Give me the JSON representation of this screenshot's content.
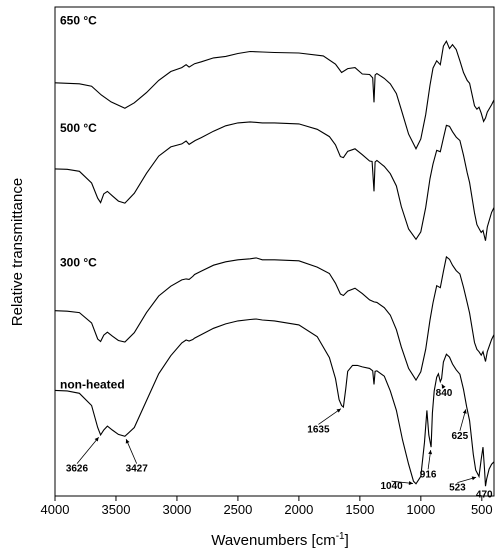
{
  "chart_data": {
    "type": "line",
    "xlabel": "Wavenumbers [cm",
    "xlabel_sup": "-1",
    "xlabel_end": "]",
    "ylabel": "Relative transmittance",
    "xlim": [
      4000,
      400
    ],
    "x_reversed": true,
    "ylim": [
      0,
      100
    ],
    "y_ticks_shown": false,
    "x_ticks": [
      4000,
      3500,
      3000,
      2500,
      2000,
      1500,
      1000,
      500
    ],
    "x_tick_labels": [
      "4000",
      "3500",
      "3000",
      "2500",
      "2000",
      "1500",
      "1000",
      "500"
    ],
    "series": [
      {
        "name": "650 °C",
        "points": [
          [
            4000,
            84.5
          ],
          [
            3900,
            84.4
          ],
          [
            3800,
            84.3
          ],
          [
            3700,
            83.8
          ],
          [
            3620,
            82.0
          ],
          [
            3540,
            80.6
          ],
          [
            3427,
            79.3
          ],
          [
            3350,
            80.4
          ],
          [
            3250,
            82.5
          ],
          [
            3150,
            85.0
          ],
          [
            3050,
            86.8
          ],
          [
            2960,
            87.6
          ],
          [
            2925,
            88.2
          ],
          [
            2900,
            87.7
          ],
          [
            2855,
            88.4
          ],
          [
            2800,
            88.8
          ],
          [
            2700,
            89.6
          ],
          [
            2600,
            89.9
          ],
          [
            2500,
            90.5
          ],
          [
            2400,
            90.9
          ],
          [
            2300,
            90.8
          ],
          [
            2200,
            90.7
          ],
          [
            2000,
            90.6
          ],
          [
            1800,
            90.0
          ],
          [
            1700,
            88.3
          ],
          [
            1650,
            86.6
          ],
          [
            1600,
            87.4
          ],
          [
            1540,
            87.6
          ],
          [
            1480,
            86.3
          ],
          [
            1420,
            86.2
          ],
          [
            1395,
            85.5
          ],
          [
            1384,
            80.5
          ],
          [
            1375,
            86.1
          ],
          [
            1360,
            86.4
          ],
          [
            1300,
            85.4
          ],
          [
            1250,
            84.3
          ],
          [
            1200,
            82.3
          ],
          [
            1160,
            79.0
          ],
          [
            1100,
            74.0
          ],
          [
            1040,
            71.0
          ],
          [
            1000,
            73.0
          ],
          [
            960,
            78.0
          ],
          [
            925,
            84.0
          ],
          [
            900,
            87.5
          ],
          [
            870,
            89.0
          ],
          [
            840,
            88.2
          ],
          [
            815,
            92.0
          ],
          [
            790,
            93.0
          ],
          [
            765,
            91.5
          ],
          [
            740,
            92.3
          ],
          [
            710,
            91.3
          ],
          [
            680,
            89.0
          ],
          [
            650,
            86.6
          ],
          [
            620,
            85.0
          ],
          [
            600,
            84.4
          ],
          [
            560,
            79.8
          ],
          [
            540,
            79.1
          ],
          [
            523,
            79.5
          ],
          [
            505,
            78.3
          ],
          [
            485,
            76.6
          ],
          [
            470,
            77.3
          ],
          [
            455,
            78.5
          ],
          [
            420,
            80.0
          ],
          [
            400,
            81.0
          ]
        ]
      },
      {
        "name": "500 °C",
        "points": [
          [
            4000,
            66.9
          ],
          [
            3900,
            66.8
          ],
          [
            3800,
            66.4
          ],
          [
            3700,
            64.0
          ],
          [
            3650,
            60.9
          ],
          [
            3626,
            60.0
          ],
          [
            3600,
            61.8
          ],
          [
            3570,
            62.3
          ],
          [
            3530,
            61.4
          ],
          [
            3480,
            60.3
          ],
          [
            3427,
            59.9
          ],
          [
            3350,
            61.9
          ],
          [
            3250,
            66.0
          ],
          [
            3150,
            69.5
          ],
          [
            3050,
            71.4
          ],
          [
            2960,
            72.0
          ],
          [
            2925,
            72.6
          ],
          [
            2900,
            71.9
          ],
          [
            2850,
            72.7
          ],
          [
            2800,
            73.3
          ],
          [
            2700,
            74.6
          ],
          [
            2600,
            75.7
          ],
          [
            2500,
            76.3
          ],
          [
            2400,
            76.5
          ],
          [
            2300,
            76.3
          ],
          [
            2200,
            76.3
          ],
          [
            2000,
            76.1
          ],
          [
            1850,
            75.0
          ],
          [
            1750,
            73.5
          ],
          [
            1700,
            71.8
          ],
          [
            1660,
            69.4
          ],
          [
            1635,
            69.2
          ],
          [
            1600,
            70.5
          ],
          [
            1540,
            71.0
          ],
          [
            1480,
            69.8
          ],
          [
            1420,
            68.5
          ],
          [
            1400,
            68.4
          ],
          [
            1384,
            62.3
          ],
          [
            1375,
            68.3
          ],
          [
            1360,
            68.6
          ],
          [
            1300,
            67.4
          ],
          [
            1250,
            65.9
          ],
          [
            1200,
            63.4
          ],
          [
            1160,
            59.2
          ],
          [
            1100,
            54.6
          ],
          [
            1040,
            52.5
          ],
          [
            1000,
            54.0
          ],
          [
            960,
            59.0
          ],
          [
            925,
            64.9
          ],
          [
            900,
            67.9
          ],
          [
            870,
            70.7
          ],
          [
            840,
            70.4
          ],
          [
            815,
            73.2
          ],
          [
            790,
            75.8
          ],
          [
            765,
            75.6
          ],
          [
            740,
            74.5
          ],
          [
            710,
            73.4
          ],
          [
            680,
            72.7
          ],
          [
            650,
            69.7
          ],
          [
            620,
            66.1
          ],
          [
            600,
            64.1
          ],
          [
            560,
            57.9
          ],
          [
            540,
            55.5
          ],
          [
            523,
            54.7
          ],
          [
            505,
            53.9
          ],
          [
            490,
            54.3
          ],
          [
            470,
            52.2
          ],
          [
            455,
            55.0
          ],
          [
            420,
            58.0
          ],
          [
            400,
            59.0
          ]
        ]
      },
      {
        "name": "300 °C",
        "points": [
          [
            4000,
            37.9
          ],
          [
            3900,
            37.8
          ],
          [
            3800,
            37.5
          ],
          [
            3700,
            35.4
          ],
          [
            3650,
            32.1
          ],
          [
            3626,
            31.6
          ],
          [
            3600,
            32.9
          ],
          [
            3570,
            33.5
          ],
          [
            3530,
            32.7
          ],
          [
            3480,
            31.8
          ],
          [
            3427,
            31.5
          ],
          [
            3350,
            33.4
          ],
          [
            3250,
            37.5
          ],
          [
            3150,
            40.9
          ],
          [
            3050,
            42.9
          ],
          [
            2960,
            44.2
          ],
          [
            2925,
            44.4
          ],
          [
            2900,
            44.3
          ],
          [
            2870,
            44.9
          ],
          [
            2855,
            45.3
          ],
          [
            2800,
            46.0
          ],
          [
            2700,
            47.2
          ],
          [
            2600,
            47.9
          ],
          [
            2500,
            48.3
          ],
          [
            2400,
            48.5
          ],
          [
            2350,
            48.7
          ],
          [
            2300,
            48.3
          ],
          [
            2200,
            48.3
          ],
          [
            2000,
            48.1
          ],
          [
            1850,
            46.8
          ],
          [
            1750,
            45.5
          ],
          [
            1700,
            43.5
          ],
          [
            1660,
            41.3
          ],
          [
            1635,
            41.0
          ],
          [
            1600,
            41.9
          ],
          [
            1540,
            42.5
          ],
          [
            1480,
            41.4
          ],
          [
            1420,
            40.1
          ],
          [
            1384,
            39.7
          ],
          [
            1360,
            39.6
          ],
          [
            1300,
            38.5
          ],
          [
            1250,
            37.0
          ],
          [
            1200,
            34.0
          ],
          [
            1160,
            30.5
          ],
          [
            1100,
            26.1
          ],
          [
            1040,
            23.7
          ],
          [
            1000,
            25.4
          ],
          [
            960,
            30.0
          ],
          [
            925,
            36.0
          ],
          [
            900,
            39.5
          ],
          [
            870,
            43.0
          ],
          [
            840,
            42.6
          ],
          [
            815,
            45.9
          ],
          [
            790,
            48.9
          ],
          [
            765,
            48.4
          ],
          [
            740,
            47.2
          ],
          [
            710,
            46.1
          ],
          [
            680,
            45.4
          ],
          [
            650,
            42.7
          ],
          [
            620,
            39.5
          ],
          [
            600,
            37.4
          ],
          [
            560,
            31.4
          ],
          [
            540,
            30.0
          ],
          [
            523,
            29.5
          ],
          [
            505,
            28.8
          ],
          [
            490,
            29.5
          ],
          [
            470,
            27.5
          ],
          [
            455,
            29.5
          ],
          [
            420,
            32.0
          ],
          [
            400,
            33.0
          ]
        ]
      },
      {
        "name": "non-heated",
        "points": [
          [
            4000,
            21.6
          ],
          [
            3900,
            21.5
          ],
          [
            3800,
            21.0
          ],
          [
            3700,
            18.5
          ],
          [
            3650,
            14.0
          ],
          [
            3626,
            12.5
          ],
          [
            3600,
            13.5
          ],
          [
            3570,
            14.3
          ],
          [
            3530,
            13.5
          ],
          [
            3480,
            12.6
          ],
          [
            3427,
            12.2
          ],
          [
            3350,
            14.0
          ],
          [
            3250,
            19.5
          ],
          [
            3150,
            25.0
          ],
          [
            3050,
            28.7
          ],
          [
            2960,
            31.3
          ],
          [
            2925,
            31.9
          ],
          [
            2900,
            31.7
          ],
          [
            2870,
            32.0
          ],
          [
            2855,
            32.3
          ],
          [
            2800,
            33.0
          ],
          [
            2700,
            34.3
          ],
          [
            2600,
            35.2
          ],
          [
            2500,
            35.8
          ],
          [
            2400,
            36.1
          ],
          [
            2350,
            36.2
          ],
          [
            2300,
            36.0
          ],
          [
            2200,
            35.8
          ],
          [
            2000,
            35.0
          ],
          [
            1850,
            32.6
          ],
          [
            1750,
            28.3
          ],
          [
            1700,
            24.0
          ],
          [
            1670,
            19.7
          ],
          [
            1650,
            18.5
          ],
          [
            1635,
            18.2
          ],
          [
            1615,
            22.0
          ],
          [
            1600,
            25.5
          ],
          [
            1560,
            26.7
          ],
          [
            1520,
            26.7
          ],
          [
            1480,
            26.4
          ],
          [
            1420,
            26.1
          ],
          [
            1395,
            25.6
          ],
          [
            1384,
            22.8
          ],
          [
            1375,
            25.5
          ],
          [
            1360,
            25.6
          ],
          [
            1300,
            24.5
          ],
          [
            1250,
            21.5
          ],
          [
            1200,
            17.5
          ],
          [
            1150,
            11.5
          ],
          [
            1100,
            6.5
          ],
          [
            1060,
            3.0
          ],
          [
            1040,
            2.5
          ],
          [
            1000,
            4.0
          ],
          [
            970,
            11.0
          ],
          [
            950,
            17.5
          ],
          [
            935,
            12.5
          ],
          [
            916,
            10.0
          ],
          [
            905,
            17.0
          ],
          [
            890,
            21.5
          ],
          [
            870,
            24.3
          ],
          [
            856,
            25.0
          ],
          [
            840,
            23.4
          ],
          [
            830,
            24.0
          ],
          [
            815,
            27.4
          ],
          [
            790,
            29.0
          ],
          [
            765,
            28.4
          ],
          [
            740,
            27.0
          ],
          [
            710,
            25.8
          ],
          [
            680,
            24.9
          ],
          [
            650,
            21.8
          ],
          [
            625,
            18.3
          ],
          [
            600,
            15.4
          ],
          [
            570,
            8.5
          ],
          [
            550,
            5.3
          ],
          [
            523,
            4.0
          ],
          [
            505,
            7.5
          ],
          [
            490,
            10.0
          ],
          [
            478,
            5.5
          ],
          [
            470,
            2.0
          ],
          [
            460,
            3.5
          ],
          [
            440,
            5.5
          ],
          [
            420,
            6.5
          ],
          [
            400,
            7.0
          ]
        ]
      }
    ],
    "annotations": [
      {
        "label": "3626",
        "target": [
          3626,
          12.5
        ],
        "text_at": [
          3820,
          5.0
        ]
      },
      {
        "label": "3427",
        "target": [
          3427,
          12.2
        ],
        "text_at": [
          3330,
          5.0
        ]
      },
      {
        "label": "1635",
        "target": [
          1635,
          18.2
        ],
        "text_at": [
          1840,
          13.0
        ]
      },
      {
        "label": "1040",
        "target": [
          1040,
          2.5
        ],
        "text_at": [
          1240,
          1.4
        ]
      },
      {
        "label": "916",
        "target": [
          916,
          10.0
        ],
        "text_at": [
          940,
          3.8
        ]
      },
      {
        "label": "840",
        "target": [
          840,
          23.4
        ],
        "text_at": [
          810,
          20.4
        ]
      },
      {
        "label": "625",
        "target": [
          625,
          18.3
        ],
        "text_at": [
          680,
          11.7
        ]
      },
      {
        "label": "523",
        "target": [
          523,
          4.0
        ],
        "text_at": [
          700,
          1.1
        ]
      },
      {
        "label": "470",
        "target": [
          470,
          2.0
        ],
        "text_at": [
          480,
          -0.3
        ]
      }
    ],
    "series_labels": [
      {
        "series": "650 °C",
        "anchor_y": 98.5
      },
      {
        "series": "500 °C",
        "anchor_y": 76.5
      },
      {
        "series": "300 °C",
        "anchor_y": 49.0
      },
      {
        "series": "non-heated",
        "anchor_y": 24.0
      }
    ],
    "legend": "none",
    "grid": false
  }
}
